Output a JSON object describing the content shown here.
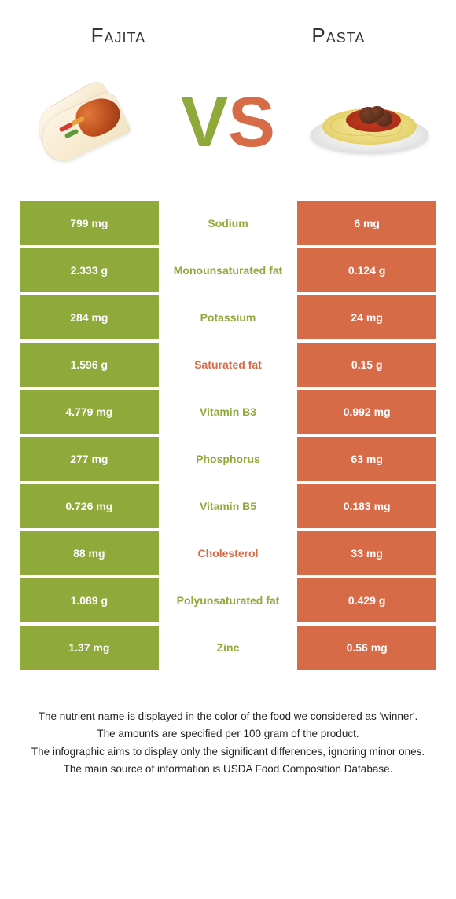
{
  "colors": {
    "left": "#8fa93a",
    "right": "#d86b47",
    "background": "#ffffff"
  },
  "titles": {
    "left": "Fajita",
    "right": "Pasta"
  },
  "vs": {
    "v": "V",
    "s": "S"
  },
  "rows": [
    {
      "left": "799 mg",
      "label": "Sodium",
      "right": "6 mg",
      "winner": "left"
    },
    {
      "left": "2.333 g",
      "label": "Monounsaturated fat",
      "right": "0.124 g",
      "winner": "left"
    },
    {
      "left": "284 mg",
      "label": "Potassium",
      "right": "24 mg",
      "winner": "left"
    },
    {
      "left": "1.596 g",
      "label": "Saturated fat",
      "right": "0.15 g",
      "winner": "right"
    },
    {
      "left": "4.779 mg",
      "label": "Vitamin B3",
      "right": "0.992 mg",
      "winner": "left"
    },
    {
      "left": "277 mg",
      "label": "Phosphorus",
      "right": "63 mg",
      "winner": "left"
    },
    {
      "left": "0.726 mg",
      "label": "Vitamin B5",
      "right": "0.183 mg",
      "winner": "left"
    },
    {
      "left": "88 mg",
      "label": "Cholesterol",
      "right": "33 mg",
      "winner": "right"
    },
    {
      "left": "1.089 g",
      "label": "Polyunsaturated fat",
      "right": "0.429 g",
      "winner": "left"
    },
    {
      "left": "1.37 mg",
      "label": "Zinc",
      "right": "0.56 mg",
      "winner": "left"
    }
  ],
  "footer": {
    "line1": "The nutrient name is displayed in the color of the food we considered as 'winner'.",
    "line2": "The amounts are specified per 100 gram of the product.",
    "line3": "The infographic aims to display only the significant differences, ignoring minor ones.",
    "line4": "The main source of information is USDA Food Composition Database."
  }
}
